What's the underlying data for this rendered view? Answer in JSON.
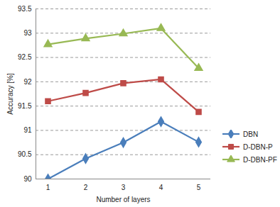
{
  "chart_data": {
    "type": "line",
    "x_label": "Number of layers",
    "y_label": "Accuracy [%]",
    "categories": [
      "1",
      "2",
      "3",
      "4",
      "5"
    ],
    "series": [
      {
        "name": "DBN",
        "color": "#4a7ebb",
        "marker": "diamond",
        "line_style": "solid",
        "values": [
          90.0,
          90.42,
          90.75,
          91.18,
          90.76
        ]
      },
      {
        "name": "D-DBN-P",
        "color": "#be4b48",
        "marker": "square",
        "line_style": "solid",
        "values": [
          91.6,
          91.77,
          91.97,
          92.05,
          91.38
        ]
      },
      {
        "name": "D-DBN-PF",
        "color": "#98b954",
        "marker": "triangle",
        "line_style": "solid",
        "values": [
          92.77,
          92.89,
          92.99,
          93.1,
          92.28
        ]
      }
    ],
    "ylim": [
      90,
      93.5
    ],
    "yticks": [
      90,
      90.5,
      91,
      91.5,
      92,
      92.5,
      93,
      93.5
    ],
    "grid": true,
    "legend": "right"
  }
}
